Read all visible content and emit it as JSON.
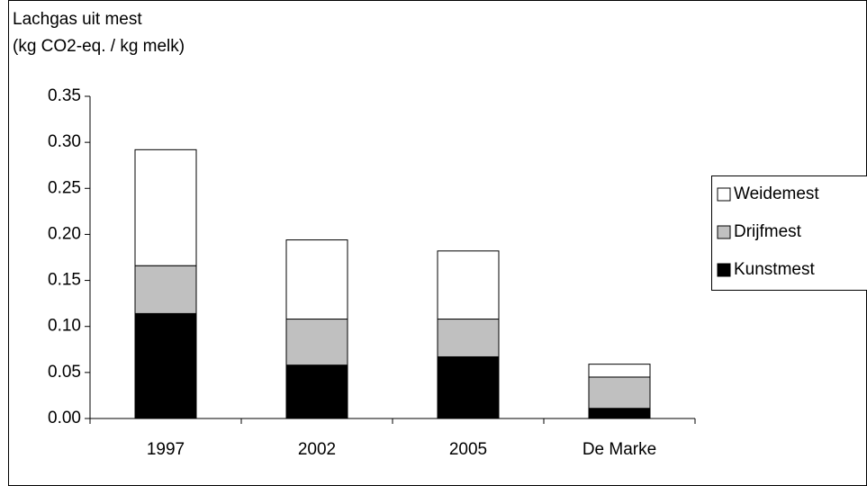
{
  "chart_data": {
    "type": "stacked_bar",
    "title": "Lachgas uit mest",
    "ylabel": "(kg CO2-eq. / kg melk)",
    "categories": [
      "1997",
      "2002",
      "2005",
      "De Marke"
    ],
    "series": [
      {
        "name": "Kunstmest",
        "color": "#000000",
        "values": [
          0.114,
          0.058,
          0.067,
          0.011
        ]
      },
      {
        "name": "Drijfmest",
        "color": "#c0c0c0",
        "values": [
          0.052,
          0.05,
          0.041,
          0.034
        ]
      },
      {
        "name": "Weidemest",
        "color": "#ffffff",
        "values": [
          0.126,
          0.086,
          0.074,
          0.014
        ]
      }
    ],
    "ylim": [
      0,
      0.35
    ],
    "yticks": [
      {
        "value": 0,
        "label": "0.00"
      },
      {
        "value": 0.05,
        "label": "0.05"
      },
      {
        "value": 0.1,
        "label": "0.10"
      },
      {
        "value": 0.15,
        "label": "0.15"
      },
      {
        "value": 0.2,
        "label": "0.20"
      },
      {
        "value": 0.25,
        "label": "0.25"
      },
      {
        "value": 0.3,
        "label": "0.30"
      },
      {
        "value": 0.35,
        "label": "0.35"
      }
    ],
    "grid": false,
    "legend": "right"
  }
}
